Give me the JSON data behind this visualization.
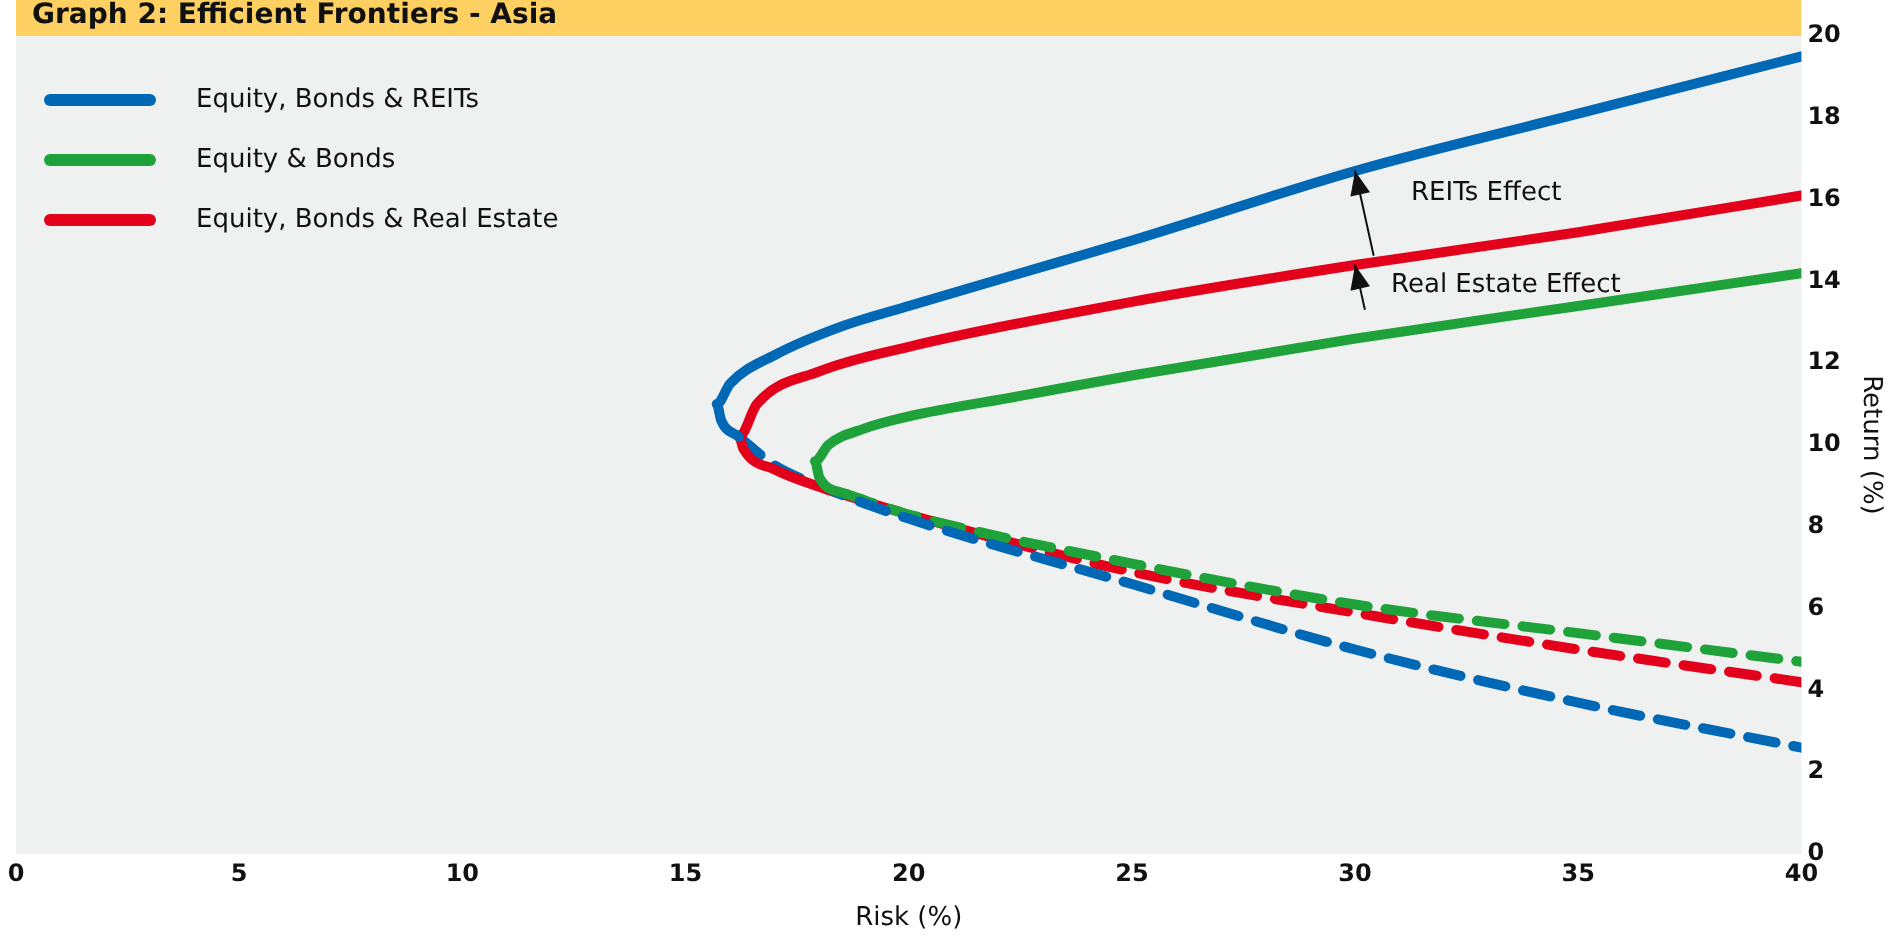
{
  "chart_data": {
    "type": "line",
    "title": "Graph 2: Efficient Frontiers - Asia",
    "xlabel": "Risk (%)",
    "ylabel": "Return (%)",
    "xlim": [
      0,
      40
    ],
    "xticks": [
      0,
      5,
      10,
      15,
      20,
      25,
      30,
      35,
      40
    ],
    "ylim": [
      0,
      20
    ],
    "yticks": [
      0,
      2,
      4,
      6,
      8,
      10,
      12,
      14,
      16,
      18,
      20
    ],
    "grid": false,
    "legend": "top left",
    "marker": "none",
    "annotations": [
      {
        "text": "REITs Effect",
        "x": 30,
        "y": 16.7
      },
      {
        "text": "Real Estate Effect",
        "x": 30,
        "y": 14.4
      }
    ],
    "series": [
      {
        "name": "Equity, Bonds & REITs",
        "color": "#0068b4",
        "line_style": "solid",
        "x": [
          16.2,
          15.8,
          15.7,
          16,
          17,
          18.5,
          20,
          22.5,
          25,
          30,
          35,
          40
        ],
        "values": [
          10.2,
          10.6,
          11,
          11.5,
          12.2,
          12.9,
          13.4,
          14.2,
          15,
          16.7,
          18.1,
          19.5
        ]
      },
      {
        "name": "Equity & Bonds",
        "color": "#1fa23a",
        "line_style": "solid",
        "x": [
          18.6,
          18,
          17.9,
          18.2,
          19,
          20,
          22.5,
          25,
          30,
          35,
          40
        ],
        "values": [
          8.8,
          9.2,
          9.6,
          10,
          10.4,
          10.7,
          11.2,
          11.7,
          12.6,
          13.4,
          14.2
        ]
      },
      {
        "name": "Equity, Bonds & Real Estate",
        "color": "#e3001b",
        "line_style": "solid",
        "x": [
          18.2,
          17,
          16.3,
          16.2,
          16.6,
          18,
          20,
          25,
          30,
          35,
          40
        ],
        "values": [
          8.9,
          9.4,
          9.9,
          10.2,
          11,
          11.8,
          12.4,
          13.5,
          14.4,
          15.2,
          16.1
        ]
      },
      {
        "color": "#0068b4",
        "line_style": "dashed",
        "x": [
          16.2,
          17,
          18,
          20,
          25,
          30,
          35,
          40
        ],
        "values": [
          10.2,
          9.5,
          9,
          8.2,
          6.6,
          5,
          3.7,
          2.6
        ]
      },
      {
        "color": "#1fa23a",
        "line_style": "dashed",
        "x": [
          18.6,
          20,
          25,
          30,
          35,
          40
        ],
        "values": [
          8.8,
          8.3,
          7.1,
          6.1,
          5.4,
          4.7
        ]
      },
      {
        "color": "#e3001b",
        "line_style": "dashed",
        "x": [
          18.2,
          20,
          25,
          30,
          35,
          40
        ],
        "values": [
          8.9,
          8.3,
          6.9,
          5.9,
          5,
          4.2
        ]
      }
    ]
  }
}
